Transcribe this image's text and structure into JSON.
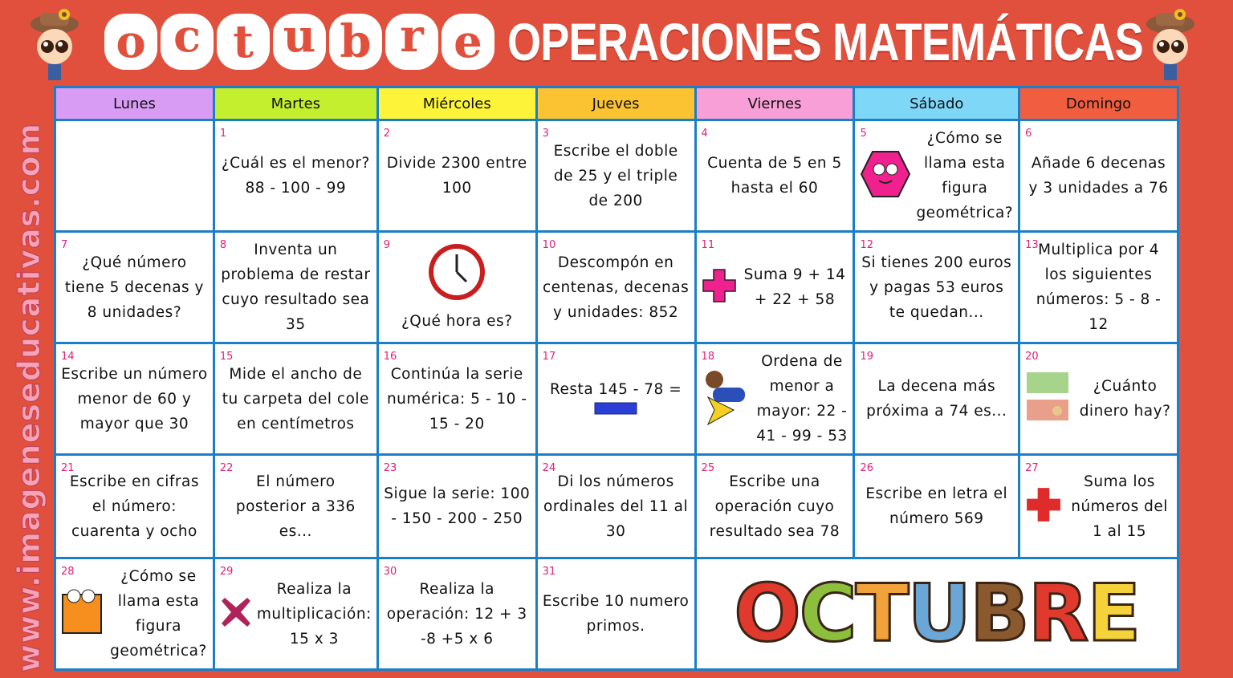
{
  "header": {
    "month_letters": [
      "o",
      "c",
      "t",
      "u",
      "b",
      "r",
      "e"
    ],
    "title": "OPERACIONES MATEMÁTICAS"
  },
  "watermark": "www.imageneseducativas.com",
  "colors": {
    "background": "#e0503c",
    "grid": "#1a7fc8",
    "day_number": "#e0207a"
  },
  "days": [
    {
      "label": "Lunes",
      "color": "#d99cf5"
    },
    {
      "label": "Martes",
      "color": "#c4ef2e"
    },
    {
      "label": "Miércoles",
      "color": "#fdf43a"
    },
    {
      "label": "Jueves",
      "color": "#fbc232"
    },
    {
      "label": "Viernes",
      "color": "#f79fd6"
    },
    {
      "label": "Sábado",
      "color": "#7fd7f7"
    },
    {
      "label": "Domingo",
      "color": "#f05d3f"
    }
  ],
  "cells": [
    {
      "num": "",
      "text": ""
    },
    {
      "num": "1",
      "text": "¿Cuál es el menor? 88 - 100 - 99"
    },
    {
      "num": "2",
      "text": "Divide 2300 entre 100"
    },
    {
      "num": "3",
      "text": "Escribe el doble de 25 y el triple de 200"
    },
    {
      "num": "4",
      "text": "Cuenta de 5 en 5 hasta el 60"
    },
    {
      "num": "5",
      "text": "¿Cómo se llama esta figura geométrica?",
      "icon": "hexagon-icon"
    },
    {
      "num": "6",
      "text": "Añade 6 decenas y 3 unidades a 76"
    },
    {
      "num": "7",
      "text": "¿Qué número tiene 5 decenas y 8 unidades?"
    },
    {
      "num": "8",
      "text": "Inventa un problema de restar cuyo resultado sea 35"
    },
    {
      "num": "9",
      "text": "¿Qué hora es?",
      "icon": "clock-icon"
    },
    {
      "num": "10",
      "text": "Descompón en centenas, decenas y unidades: 852"
    },
    {
      "num": "11",
      "text": "Suma 9 + 14 + 22 + 58",
      "icon": "plus-icon"
    },
    {
      "num": "12",
      "text": "Si tienes 200 euros y pagas 53 euros te quedan..."
    },
    {
      "num": "13",
      "text": "Multiplica por 4 los siguientes números: 5 - 8 - 12"
    },
    {
      "num": "14",
      "text": "Escribe un número menor de 60 y mayor que 30"
    },
    {
      "num": "15",
      "text": "Mide el ancho de tu carpeta del cole en centímetros"
    },
    {
      "num": "16",
      "text": "Continúa la serie numérica: 5 - 10 - 15 - 20"
    },
    {
      "num": "17",
      "text": "Resta 145 - 78 =",
      "icon": "minus-icon"
    },
    {
      "num": "18",
      "text": "Ordena de menor a mayor: 22 - 41 - 99 - 53",
      "icon": "greater-than-icon"
    },
    {
      "num": "19",
      "text": "La decena más próxima a 74 es..."
    },
    {
      "num": "20",
      "text": "¿Cuánto dinero hay?",
      "icon": "money-icon"
    },
    {
      "num": "21",
      "text": "Escribe en cifras el número: cuarenta y ocho"
    },
    {
      "num": "22",
      "text": "El número posterior a 336 es..."
    },
    {
      "num": "23",
      "text": "Sigue la serie: 100 - 150 - 200 - 250"
    },
    {
      "num": "24",
      "text": "Di los números ordinales del 11 al 30"
    },
    {
      "num": "25",
      "text": "Escribe una operación cuyo resultado sea 78"
    },
    {
      "num": "26",
      "text": "Escribe en letra el número 569"
    },
    {
      "num": "27",
      "text": "Suma los números del 1 al 15",
      "icon": "red-plus-icon"
    },
    {
      "num": "28",
      "text": "¿Cómo se llama esta figura geométrica?",
      "icon": "square-icon"
    },
    {
      "num": "29",
      "text": "Realiza la multiplicación: 15 x 3",
      "icon": "multiply-icon"
    },
    {
      "num": "30",
      "text": "Realiza la operación: 12 + 3 -8 +5 x 6"
    },
    {
      "num": "31",
      "text": "Escribe 10 numero primos."
    }
  ],
  "logo": {
    "text": "OCTUBRE",
    "letter_colors": [
      "#e03a2e",
      "#8bbf3c",
      "#f2a23a",
      "#6aa6d6",
      "#8a5a2e",
      "#e03a2e",
      "#f3d23a"
    ]
  }
}
